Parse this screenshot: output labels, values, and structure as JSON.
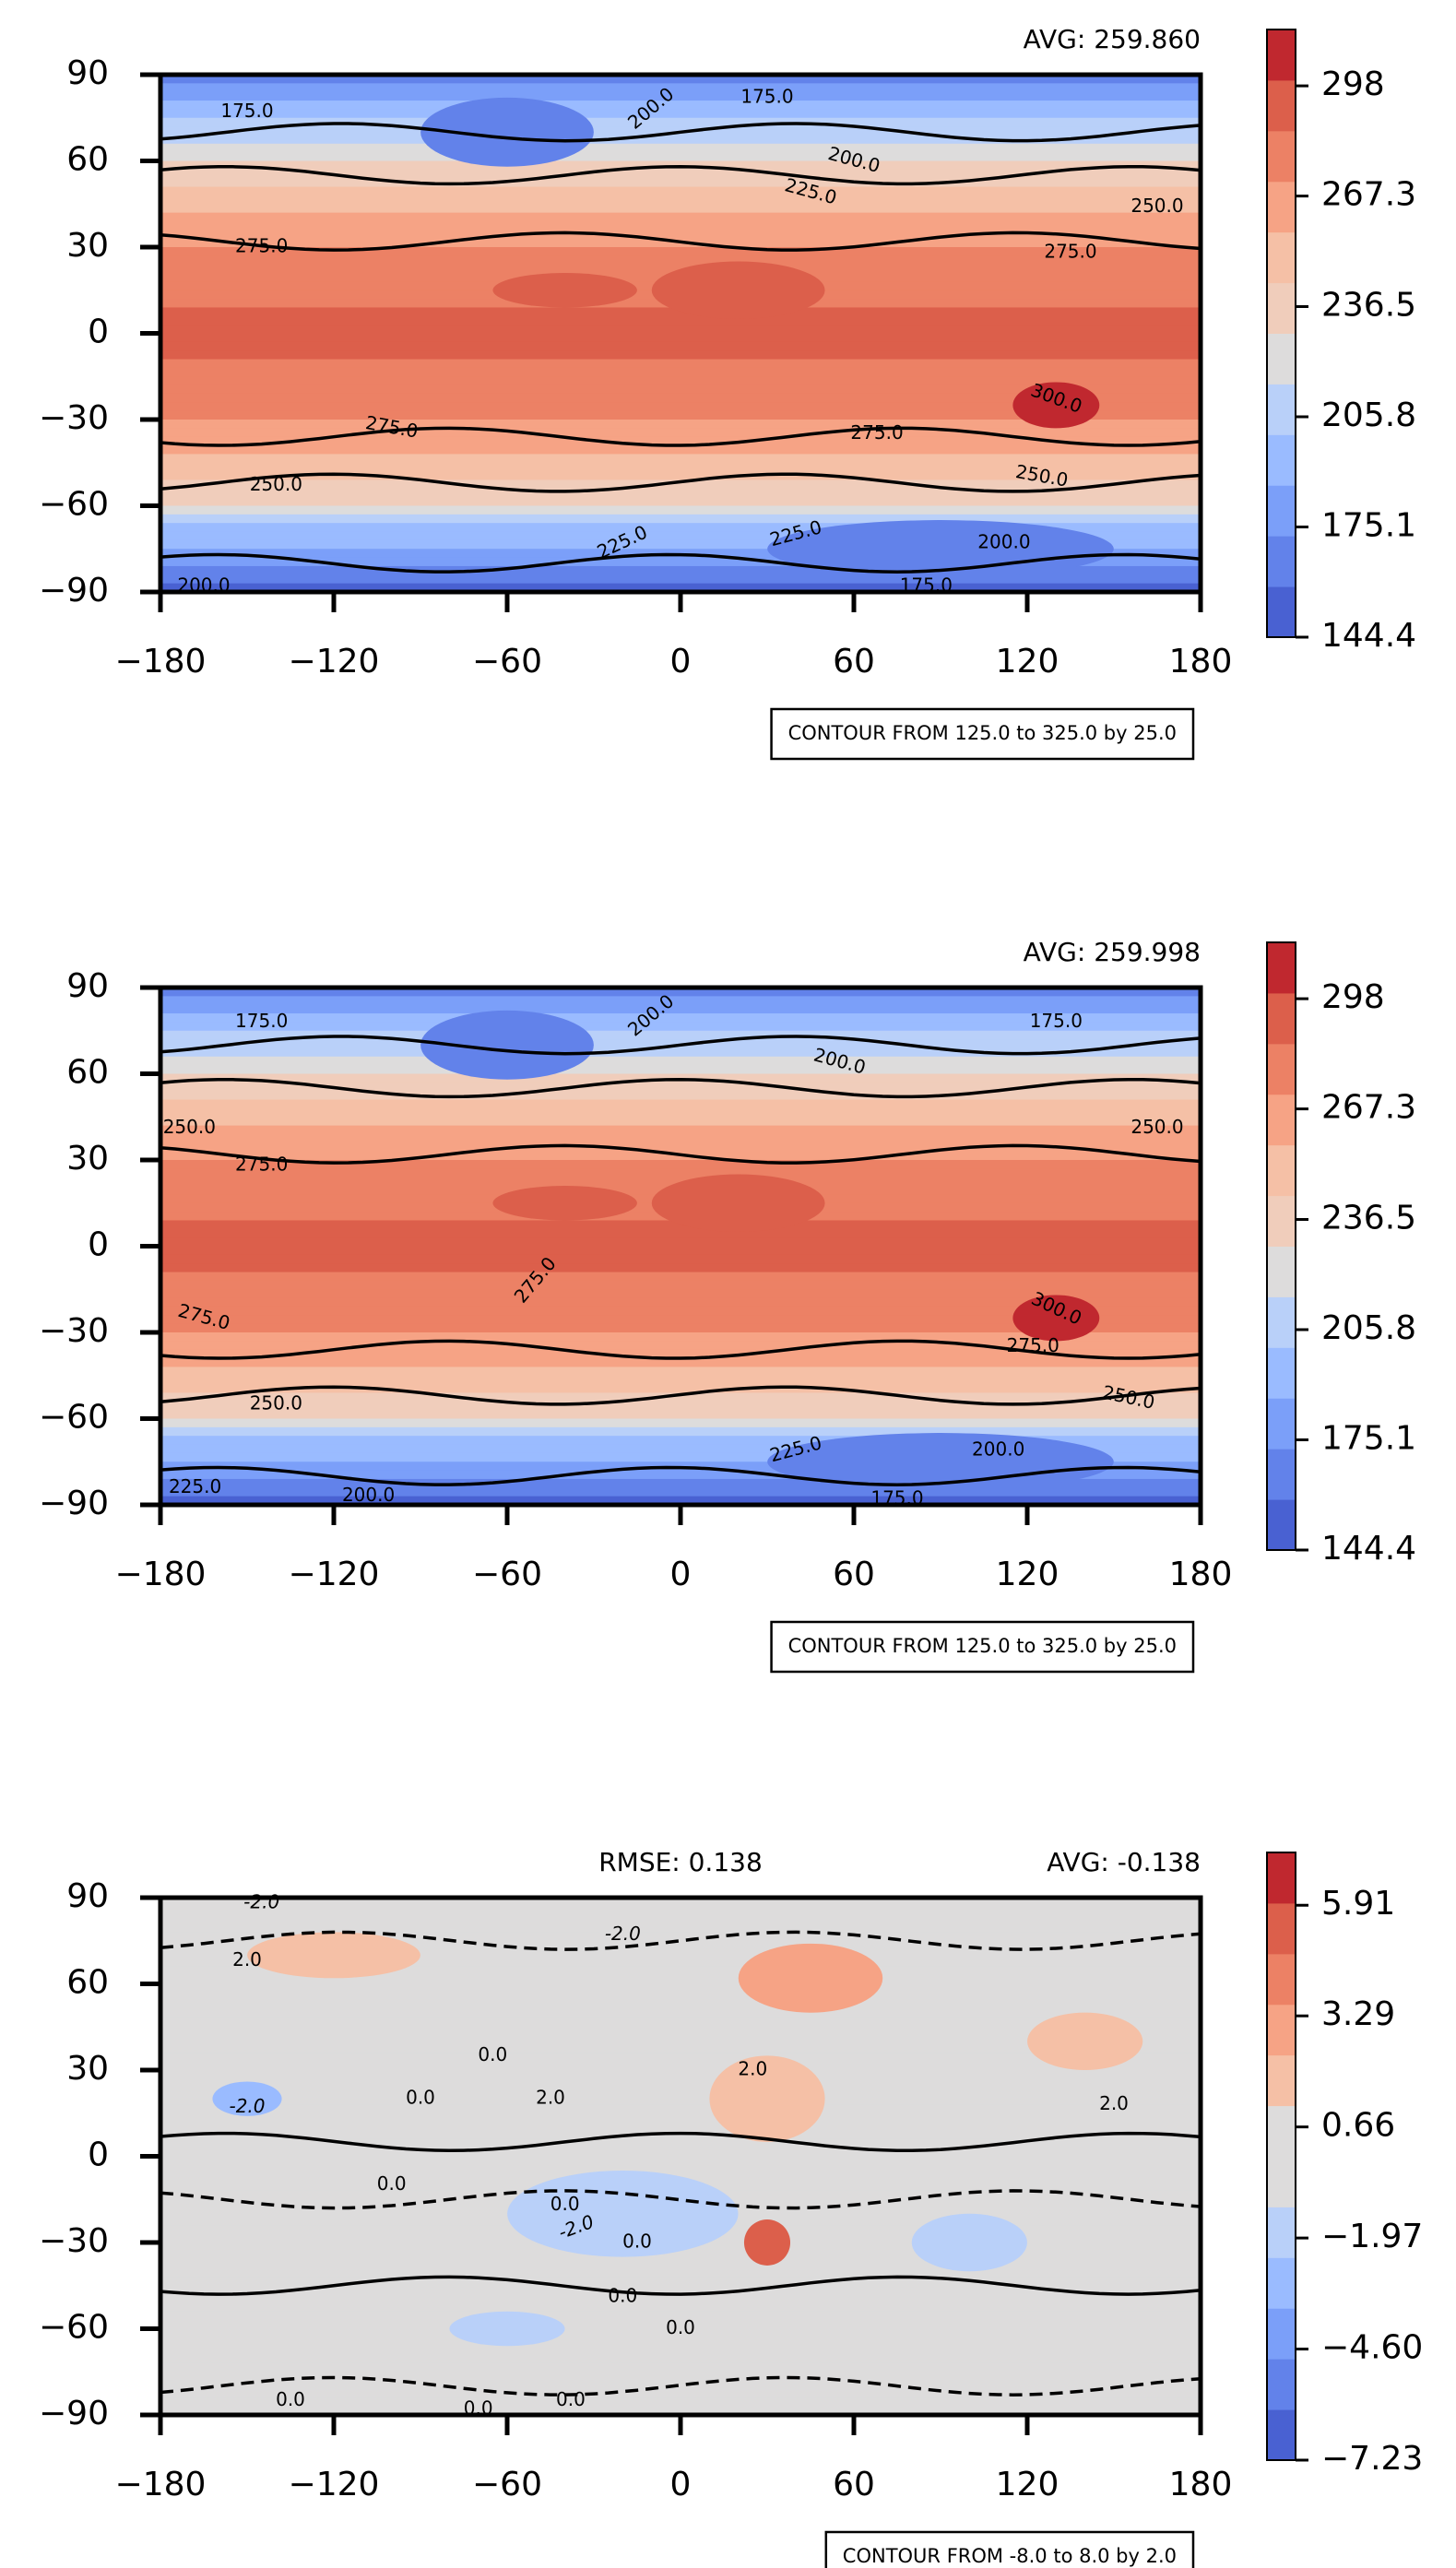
{
  "chart_data": [
    {
      "type": "contourf",
      "title_right": "AVG: 259.860",
      "note": "CONTOUR FROM 125.0 to 325.0 by 25.0",
      "xlim": [
        -180,
        180
      ],
      "xticks": [
        {
          "value": -180,
          "label": "−180"
        },
        {
          "value": -120,
          "label": "−120"
        },
        {
          "value": -60,
          "label": "−60"
        },
        0,
        60,
        120,
        180
      ],
      "ylim": [
        -90,
        90
      ],
      "yticks": [
        {
          "value": -90,
          "label": "−90"
        },
        {
          "value": -60,
          "label": "−60"
        },
        {
          "value": -30,
          "label": "−30"
        },
        0,
        30,
        60,
        90
      ],
      "clim": [
        144.4,
        313.7
      ],
      "cticks": [
        144.4,
        175.1,
        205.8,
        236.5,
        267.3,
        298.0
      ],
      "colors": [
        "#4961d2",
        "#6282ea",
        "#7b9ff9",
        "#9abbff",
        "#b9d0f9",
        "#dddcdc",
        "#f0cdbb",
        "#f5c0a6",
        "#f6a385",
        "#ec8165",
        "#dc5f4b",
        "#c0282f"
      ],
      "contour_labels": [
        {
          "value": 175,
          "label": "175.0"
        },
        {
          "value": 200,
          "label": "200.0"
        },
        {
          "value": 175,
          "label": "175.0"
        },
        {
          "value": 200,
          "label": "200.0"
        },
        {
          "value": 225,
          "label": "225.0"
        },
        {
          "value": 250,
          "label": "250.0"
        },
        {
          "value": 275,
          "label": "275.0"
        },
        {
          "value": 275,
          "label": "275.0"
        },
        {
          "value": 275,
          "label": "275.0"
        },
        {
          "value": 275,
          "label": "275.0"
        },
        {
          "value": 300,
          "label": "300.0"
        },
        {
          "value": 250,
          "label": "250.0"
        },
        {
          "value": 250,
          "label": "250.0"
        },
        {
          "value": 225,
          "label": "225.0"
        },
        {
          "value": 225,
          "label": "225.0"
        },
        {
          "value": 200,
          "label": "200.0"
        },
        {
          "value": 175,
          "label": "175.0"
        },
        {
          "value": 200,
          "label": "200.0"
        }
      ]
    },
    {
      "type": "contourf",
      "title_right": "AVG: 259.998",
      "note": "CONTOUR FROM 125.0 to 325.0 by 25.0",
      "xlim": [
        -180,
        180
      ],
      "xticks": [
        {
          "value": -180,
          "label": "−180"
        },
        {
          "value": -120,
          "label": "−120"
        },
        {
          "value": -60,
          "label": "−60"
        },
        0,
        60,
        120,
        180
      ],
      "ylim": [
        -90,
        90
      ],
      "yticks": [
        {
          "value": -90,
          "label": "−90"
        },
        {
          "value": -60,
          "label": "−60"
        },
        {
          "value": -30,
          "label": "−30"
        },
        0,
        30,
        60,
        90
      ],
      "clim": [
        144.4,
        313.7
      ],
      "cticks": [
        144.4,
        175.1,
        205.8,
        236.5,
        267.3,
        298.0
      ],
      "colors": [
        "#4961d2",
        "#6282ea",
        "#7b9ff9",
        "#9abbff",
        "#b9d0f9",
        "#dddcdc",
        "#f0cdbb",
        "#f5c0a6",
        "#f6a385",
        "#ec8165",
        "#dc5f4b",
        "#c0282f"
      ],
      "contour_labels": [
        {
          "value": 175,
          "label": "175.0"
        },
        {
          "value": 200,
          "label": "200.0"
        },
        {
          "value": 175,
          "label": "175.0"
        },
        {
          "value": 200,
          "label": "200.0"
        },
        {
          "value": 250,
          "label": "250.0"
        },
        {
          "value": 250,
          "label": "250.0"
        },
        {
          "value": 275,
          "label": "275.0"
        },
        {
          "value": 275,
          "label": "275.0"
        },
        {
          "value": 275,
          "label": "275.0"
        },
        {
          "value": 275,
          "label": "275.0"
        },
        {
          "value": 300,
          "label": "300.0"
        },
        {
          "value": 250,
          "label": "250.0"
        },
        {
          "value": 250,
          "label": "250.0"
        },
        {
          "value": 225,
          "label": "225.0"
        },
        {
          "value": 225,
          "label": "225.0"
        },
        {
          "value": 200,
          "label": "200.0"
        },
        {
          "value": 175,
          "label": "175.0"
        },
        {
          "value": 200,
          "label": "200.0"
        }
      ]
    },
    {
      "type": "contourf",
      "title_center": "RMSE: 0.138",
      "title_right": "AVG: -0.138",
      "note": "CONTOUR FROM -8.0 to 8.0 by 2.0",
      "xlim": [
        -180,
        180
      ],
      "xticks": [
        {
          "value": -180,
          "label": "−180"
        },
        {
          "value": -120,
          "label": "−120"
        },
        {
          "value": -60,
          "label": "−60"
        },
        0,
        60,
        120,
        180
      ],
      "ylim": [
        -90,
        90
      ],
      "yticks": [
        {
          "value": -90,
          "label": "−90"
        },
        {
          "value": -60,
          "label": "−60"
        },
        {
          "value": -30,
          "label": "−30"
        },
        0,
        30,
        60,
        90
      ],
      "clim": [
        -7.23,
        7.16
      ],
      "cticks": [
        {
          "value": -7.23,
          "label": "−7.23"
        },
        {
          "value": -4.6,
          "label": "−4.60"
        },
        {
          "value": -1.97,
          "label": "−1.97"
        },
        0.66,
        3.29,
        5.91
      ],
      "colors": [
        "#4961d2",
        "#6282ea",
        "#7b9ff9",
        "#9abbff",
        "#b9d0f9",
        "#dddcdc",
        "#dddcdc",
        "#f5c0a6",
        "#f6a385",
        "#ec8165",
        "#dc5f4b",
        "#c0282f"
      ],
      "contour_labels": [
        {
          "value": -2,
          "label": "-2.0"
        },
        {
          "value": 2,
          "label": "2.0"
        },
        {
          "value": -2,
          "label": "-2.0"
        },
        {
          "value": -2,
          "label": "-2.0"
        },
        {
          "value": 0,
          "label": "0.0"
        },
        {
          "value": 0,
          "label": "0.0"
        },
        {
          "value": 2,
          "label": "2.0"
        },
        {
          "value": 0,
          "label": "0.0"
        },
        {
          "value": 2,
          "label": "2.0"
        },
        {
          "value": 0,
          "label": "0.0"
        },
        {
          "value": -2,
          "label": "-2.0"
        },
        {
          "value": 0,
          "label": "0.0"
        },
        {
          "value": 0,
          "label": "0.0"
        },
        {
          "value": 0,
          "label": "0.0"
        },
        {
          "value": 0,
          "label": "0.0"
        },
        {
          "value": 0,
          "label": "0.0"
        },
        {
          "value": 0,
          "label": "0.0"
        },
        {
          "value": 2,
          "label": "2.0"
        }
      ]
    }
  ]
}
